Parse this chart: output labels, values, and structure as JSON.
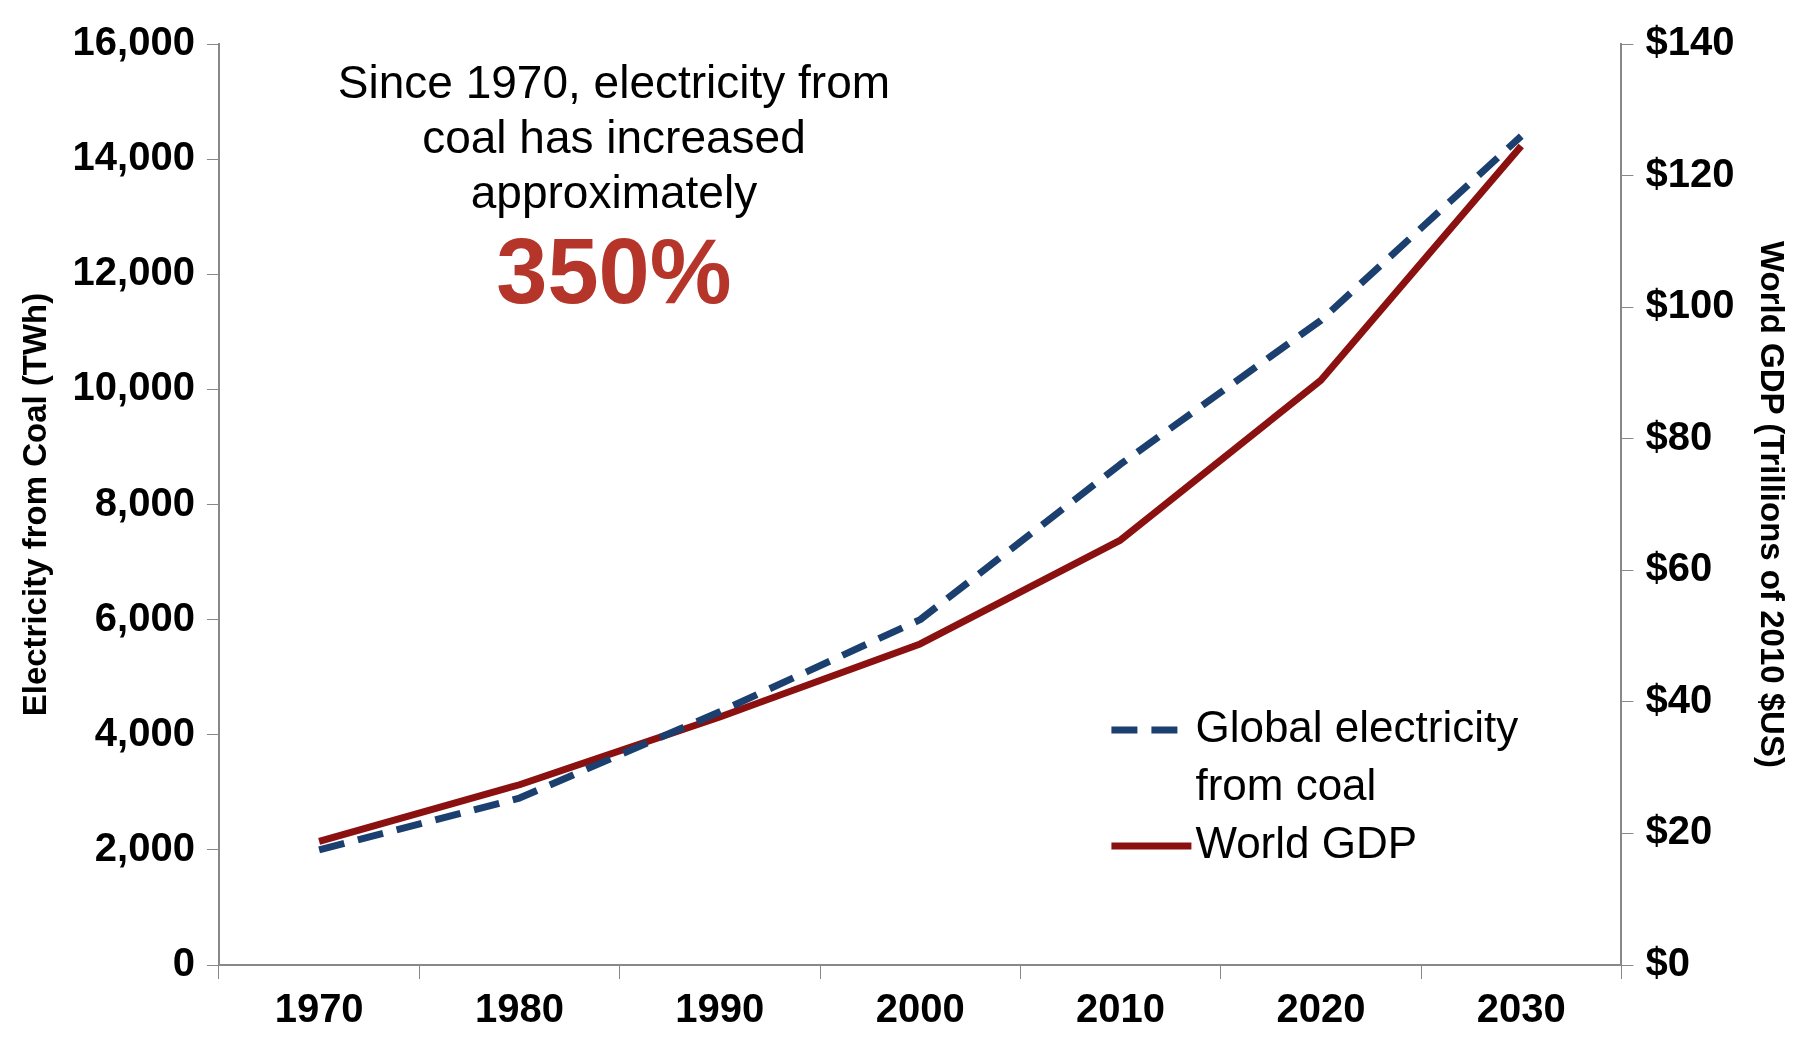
{
  "chart_data": {
    "type": "line",
    "categories": [
      "1970",
      "1980",
      "1990",
      "2000",
      "2010",
      "2020",
      "2030"
    ],
    "ylabel": "Electricity from Coal (TWh)",
    "y2label": "World GDP (Trillions of 2010 $US)",
    "ylim": [
      0,
      16000
    ],
    "yticks": [
      {
        "value": 0,
        "label": "0"
      },
      {
        "value": 2000,
        "label": "2,000"
      },
      {
        "value": 4000,
        "label": "4,000"
      },
      {
        "value": 6000,
        "label": "6,000"
      },
      {
        "value": 8000,
        "label": "8,000"
      },
      {
        "value": 10000,
        "label": "10,000"
      },
      {
        "value": 12000,
        "label": "12,000"
      },
      {
        "value": 14000,
        "label": "14,000"
      },
      {
        "value": 16000,
        "label": "16,000"
      }
    ],
    "y2lim": [
      0,
      140
    ],
    "y2ticks": [
      {
        "value": 0,
        "label": "$0"
      },
      {
        "value": 20,
        "label": "$20"
      },
      {
        "value": 40,
        "label": "$40"
      },
      {
        "value": 60,
        "label": "$60"
      },
      {
        "value": 80,
        "label": "$80"
      },
      {
        "value": 100,
        "label": "$100"
      },
      {
        "value": 120,
        "label": "$120"
      },
      {
        "value": 140,
        "label": "$140"
      }
    ],
    "series": [
      {
        "name": "Global electricity from coal",
        "color": "#1b3f6e",
        "line_style": "dashed",
        "values": [
          2000,
          2900,
          4400,
          6000,
          8700,
          11200,
          14400
        ]
      },
      {
        "name": "World GDP",
        "color": "#8b1111",
        "line_style": "solid",
        "axis": "y2",
        "values": [
          18.8,
          27.4,
          37.7,
          48.8,
          64.6,
          88.9,
          124.5
        ]
      }
    ],
    "annotations": [
      "Since 1970, electricity from coal has increased approximately",
      "350%"
    ],
    "grid": false,
    "legend": "bottom right",
    "marker": "none"
  }
}
